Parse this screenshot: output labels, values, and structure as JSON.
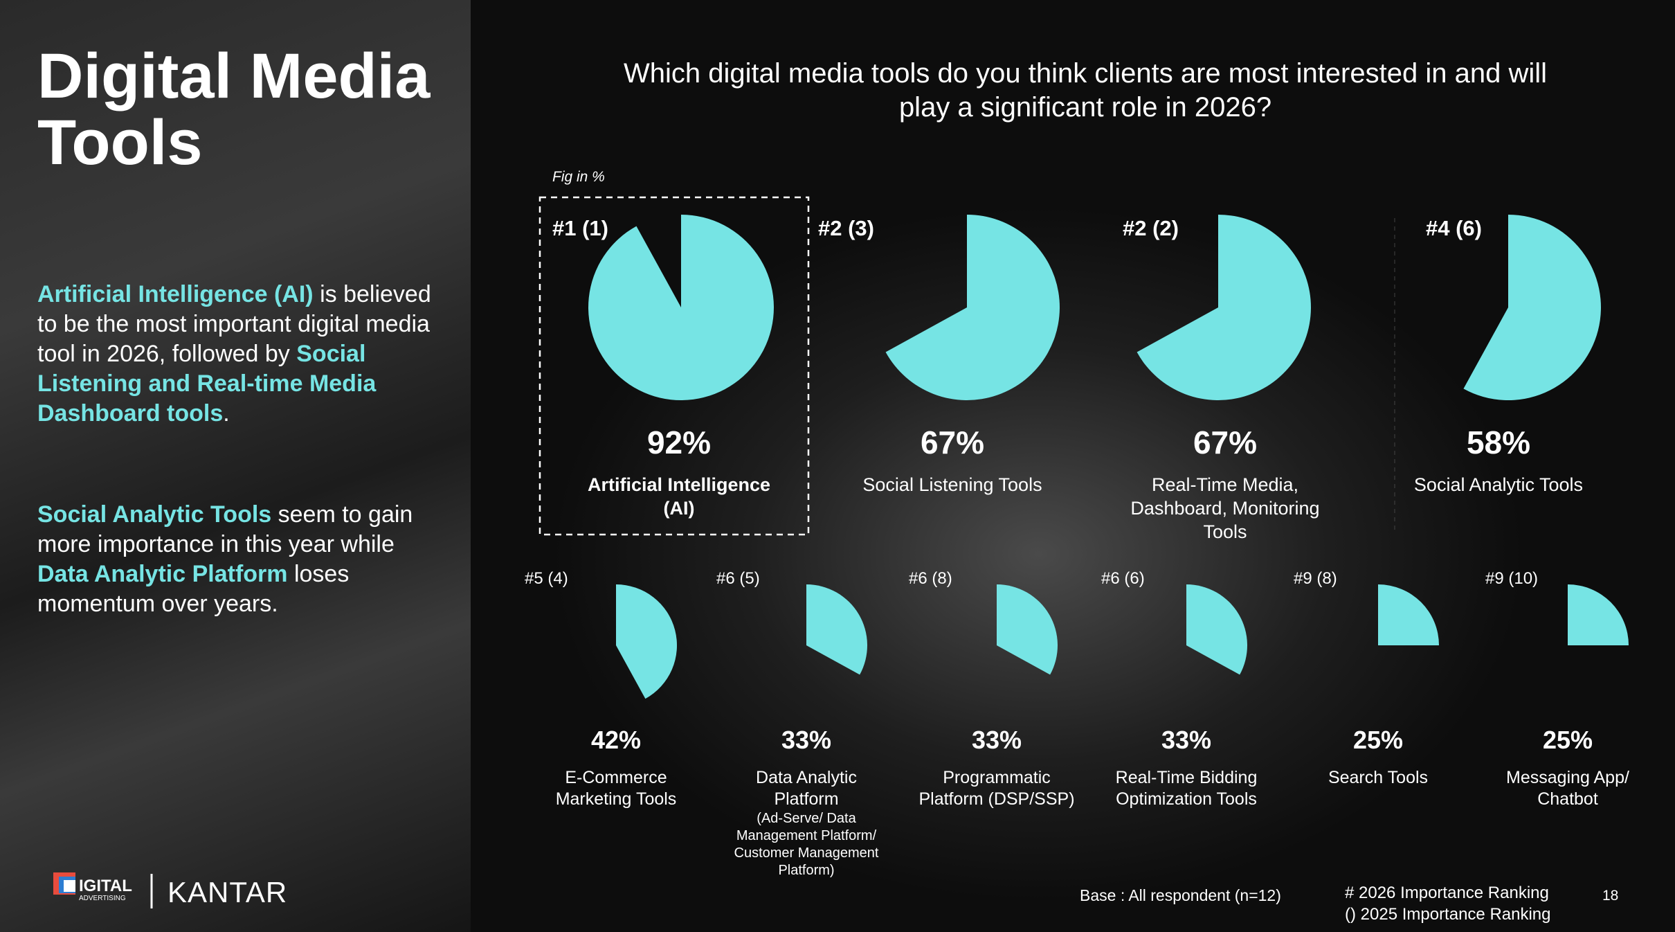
{
  "header": {
    "title": "Digital Media Tools"
  },
  "paragraphs": [
    [
      {
        "text": "Artificial Intelligence (AI)",
        "highlight": true
      },
      {
        "text": " is believed to be the most important digital media tool in 2026, followed by ",
        "highlight": false
      },
      {
        "text": "Social Listening and Real-time Media Dashboard tools",
        "highlight": true
      },
      {
        "text": ".",
        "highlight": false
      }
    ],
    [
      {
        "text": "Social Analytic Tools",
        "highlight": true
      },
      {
        "text": " seem to gain more importance in this year while ",
        "highlight": false
      },
      {
        "text": "Data Analytic Platform",
        "highlight": true
      },
      {
        "text": " loses momentum over years.",
        "highlight": false
      }
    ]
  ],
  "chart_data": {
    "type": "pie",
    "title": "Which digital media tools do you think clients are most interested in and will play a significant role in 2026?",
    "note": "Fig in %",
    "color": "#76e4e4",
    "categories": [
      "Artificial Intelligence (AI)",
      "Social Listening Tools",
      "Real-Time Media, Dashboard, Monitoring Tools",
      "Social Analytic Tools",
      "E-Commerce Marketing Tools",
      "Data Analytic Platform",
      "Programmatic Platform (DSP/SSP)",
      "Real-Time Bidding Optimization Tools",
      "Search Tools",
      "Messaging App/ Chatbot"
    ],
    "category_note": "(Ad-Serve/ Data Management Platform/ Customer Management Platform)",
    "ranks": [
      "#1 (1)",
      "#2 (3)",
      "#2 (2)",
      "#4 (6)",
      "#5 (4)",
      "#6 (5)",
      "#6 (8)",
      "#6 (6)",
      "#9 (8)",
      "#9 (10)"
    ],
    "values": [
      92,
      67,
      67,
      58,
      42,
      33,
      33,
      33,
      25,
      25
    ],
    "value_labels": [
      "92%",
      "67%",
      "67%",
      "58%",
      "42%",
      "33%",
      "33%",
      "33%",
      "25%",
      "25%"
    ]
  },
  "footer": {
    "base": "Base : All respondent (n=12)",
    "legend": [
      "# 2026 Importance Ranking",
      "() 2025 Importance Ranking"
    ],
    "page": "18",
    "logo_text": "IGITAL",
    "logo_subtext": "ADVERTISING",
    "brand": "KANTAR"
  }
}
